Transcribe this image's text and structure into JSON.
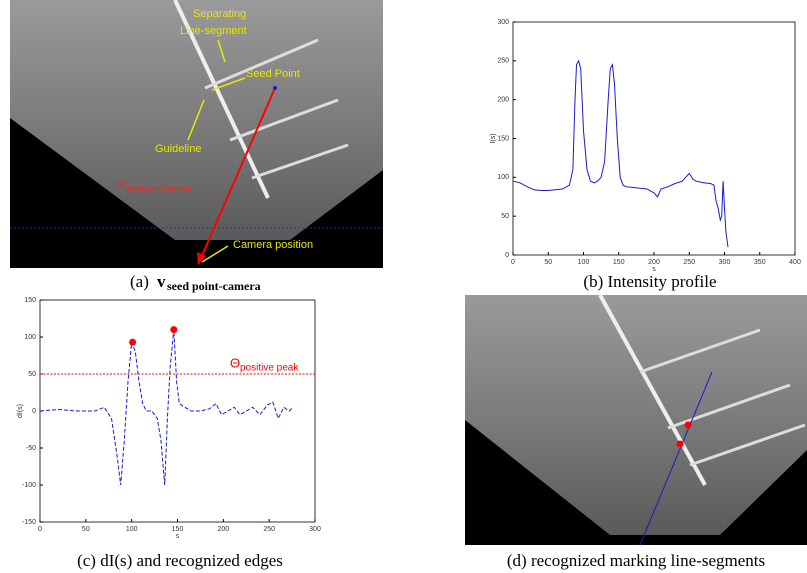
{
  "figure_a": {
    "labels": {
      "separating": "Separating",
      "line_segment": "Line-segment",
      "seed_point": "Seed Point",
      "guideline": "Guideline",
      "vector": "V",
      "vector_subscript": "seed point-camera",
      "camera": "Camera position"
    },
    "caption": {
      "prefix": "(a)",
      "symbol": "v",
      "subscript": "seed point-camera"
    }
  },
  "figure_d": {
    "caption": "(d) recognized marking line-segments"
  },
  "chart_data": [
    {
      "type": "line",
      "caption": "(b) Intensity profile",
      "x_label": "s",
      "y_label": "I(s)",
      "x": [
        0,
        10,
        20,
        30,
        40,
        50,
        60,
        70,
        80,
        85,
        88,
        90,
        93,
        96,
        100,
        105,
        110,
        115,
        120,
        125,
        130,
        135,
        138,
        141,
        144,
        148,
        152,
        156,
        160,
        170,
        180,
        190,
        200,
        205,
        210,
        220,
        230,
        240,
        245,
        250,
        255,
        260,
        270,
        280,
        285,
        288,
        291,
        294,
        296,
        298,
        300,
        302,
        305
      ],
      "series": [
        {
          "color": "#1a1acc",
          "dashed": false,
          "values": [
            95,
            93,
            88,
            84,
            83,
            83,
            84,
            85,
            90,
            110,
            200,
            245,
            250,
            240,
            160,
            110,
            95,
            93,
            95,
            100,
            120,
            200,
            240,
            245,
            220,
            150,
            100,
            90,
            88,
            87,
            86,
            85,
            80,
            75,
            85,
            88,
            92,
            95,
            100,
            105,
            98,
            95,
            93,
            92,
            90,
            70,
            60,
            45,
            50,
            95,
            60,
            30,
            10
          ]
        }
      ],
      "xlim": [
        0,
        400
      ],
      "xticks": [
        0,
        50,
        100,
        150,
        200,
        250,
        300,
        350,
        400
      ],
      "ylim": [
        0,
        300
      ],
      "yticks": [
        0,
        50,
        100,
        150,
        200,
        250,
        300
      ]
    },
    {
      "type": "line",
      "caption": "(c) dI(s) and recognized edges",
      "x_label": "s",
      "y_label": "dI(s)",
      "x": [
        0,
        20,
        40,
        60,
        70,
        78,
        84,
        88,
        92,
        96,
        100,
        104,
        108,
        112,
        116,
        122,
        128,
        132,
        136,
        139,
        142,
        146,
        149,
        152,
        158,
        165,
        175,
        185,
        192,
        198,
        205,
        212,
        218,
        225,
        232,
        240,
        248,
        254,
        260,
        266,
        272,
        276
      ],
      "series": [
        {
          "color": "#1a1acc",
          "dashed": true,
          "values": [
            0,
            2,
            0,
            0,
            5,
            -10,
            -60,
            -100,
            -40,
            40,
            93,
            80,
            40,
            10,
            0,
            0,
            -10,
            -40,
            -100,
            -10,
            60,
            110,
            40,
            10,
            5,
            0,
            0,
            3,
            10,
            -5,
            0,
            5,
            -5,
            0,
            5,
            -5,
            8,
            12,
            -10,
            5,
            0,
            5
          ]
        }
      ],
      "threshold": {
        "value": 50,
        "label": "Θ",
        "subscript": "positive peak",
        "color": "#ff0000"
      },
      "peaks": {
        "x": [
          101,
          146
        ],
        "y": [
          93,
          110
        ],
        "color": "#ff0000"
      },
      "xlim": [
        0,
        300
      ],
      "xticks": [
        0,
        50,
        100,
        150,
        200,
        250,
        300
      ],
      "ylim": [
        -150,
        150
      ],
      "yticks": [
        -150,
        -100,
        -50,
        0,
        50,
        100,
        150
      ]
    }
  ]
}
